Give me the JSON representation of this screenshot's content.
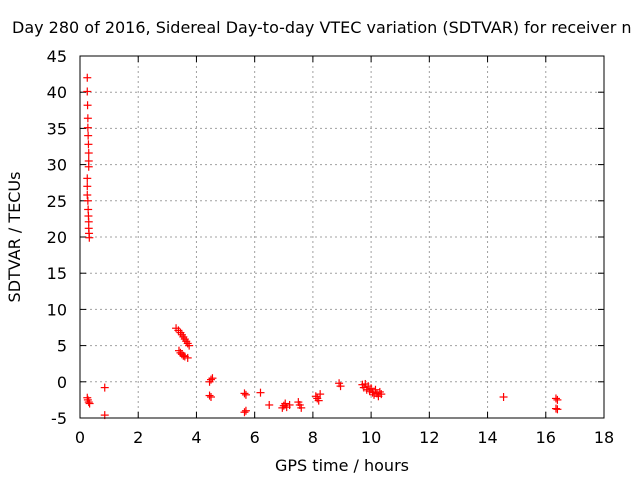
{
  "chart_data": {
    "type": "scatter",
    "title": "Day 280 of 2016, Sidereal Day-to-day VTEC variation (SDTVAR) for receiver n",
    "xlabel": "GPS time / hours",
    "ylabel": "SDTVAR / TECUs",
    "xlim": [
      0,
      18
    ],
    "ylim": [
      -5,
      45
    ],
    "xticks": [
      0,
      2,
      4,
      6,
      8,
      10,
      12,
      14,
      16,
      18
    ],
    "yticks": [
      -5,
      0,
      5,
      10,
      15,
      20,
      25,
      30,
      35,
      40,
      45
    ],
    "grid": true,
    "marker": "+",
    "series": [
      {
        "name": "SDTVAR",
        "color": "#ff0000",
        "points": [
          [
            0.25,
            42.0
          ],
          [
            0.25,
            40.1
          ],
          [
            0.26,
            38.2
          ],
          [
            0.27,
            36.4
          ],
          [
            0.27,
            35.1
          ],
          [
            0.28,
            34.0
          ],
          [
            0.29,
            32.8
          ],
          [
            0.3,
            31.6
          ],
          [
            0.3,
            30.5
          ],
          [
            0.3,
            29.7
          ],
          [
            0.25,
            28.1
          ],
          [
            0.25,
            27.0
          ],
          [
            0.25,
            25.8
          ],
          [
            0.27,
            25.0
          ],
          [
            0.28,
            23.8
          ],
          [
            0.29,
            22.9
          ],
          [
            0.3,
            22.1
          ],
          [
            0.3,
            21.2
          ],
          [
            0.31,
            20.5
          ],
          [
            0.32,
            19.9
          ],
          [
            0.25,
            -2.2
          ],
          [
            0.27,
            -2.5
          ],
          [
            0.3,
            -2.8
          ],
          [
            0.33,
            -3.0
          ],
          [
            0.85,
            -0.8
          ],
          [
            0.85,
            -4.6
          ],
          [
            3.3,
            7.4
          ],
          [
            3.38,
            7.1
          ],
          [
            3.45,
            6.8
          ],
          [
            3.5,
            6.5
          ],
          [
            3.55,
            6.2
          ],
          [
            3.6,
            5.9
          ],
          [
            3.65,
            5.6
          ],
          [
            3.7,
            5.3
          ],
          [
            3.75,
            5.0
          ],
          [
            3.4,
            4.3
          ],
          [
            3.45,
            4.0
          ],
          [
            3.5,
            3.8
          ],
          [
            3.55,
            3.6
          ],
          [
            3.6,
            3.5
          ],
          [
            3.7,
            3.3
          ],
          [
            4.45,
            0.0
          ],
          [
            4.5,
            0.3
          ],
          [
            4.55,
            0.5
          ],
          [
            4.45,
            -1.9
          ],
          [
            4.5,
            -2.1
          ],
          [
            5.65,
            -1.6
          ],
          [
            5.7,
            -1.8
          ],
          [
            5.65,
            -4.2
          ],
          [
            5.7,
            -4.0
          ],
          [
            6.2,
            -1.5
          ],
          [
            6.5,
            -3.2
          ],
          [
            6.95,
            -3.6
          ],
          [
            7.0,
            -3.3
          ],
          [
            7.05,
            -3.0
          ],
          [
            7.1,
            -3.5
          ],
          [
            7.2,
            -3.2
          ],
          [
            7.5,
            -2.8
          ],
          [
            7.55,
            -3.2
          ],
          [
            7.6,
            -3.6
          ],
          [
            8.1,
            -2.0
          ],
          [
            8.15,
            -2.3
          ],
          [
            8.2,
            -2.6
          ],
          [
            8.25,
            -1.7
          ],
          [
            8.9,
            -0.2
          ],
          [
            8.95,
            -0.6
          ],
          [
            9.7,
            -0.4
          ],
          [
            9.75,
            -0.8
          ],
          [
            9.8,
            -0.3
          ],
          [
            9.85,
            -1.1
          ],
          [
            9.9,
            -0.6
          ],
          [
            9.95,
            -1.3
          ],
          [
            10.0,
            -0.9
          ],
          [
            10.05,
            -1.5
          ],
          [
            10.1,
            -1.8
          ],
          [
            10.15,
            -1.1
          ],
          [
            10.2,
            -1.6
          ],
          [
            10.25,
            -2.0
          ],
          [
            10.3,
            -1.4
          ],
          [
            10.35,
            -1.7
          ],
          [
            14.55,
            -2.1
          ],
          [
            16.35,
            -2.3
          ],
          [
            16.4,
            -2.5
          ],
          [
            16.35,
            -3.7
          ],
          [
            16.4,
            -3.8
          ]
        ]
      }
    ]
  }
}
